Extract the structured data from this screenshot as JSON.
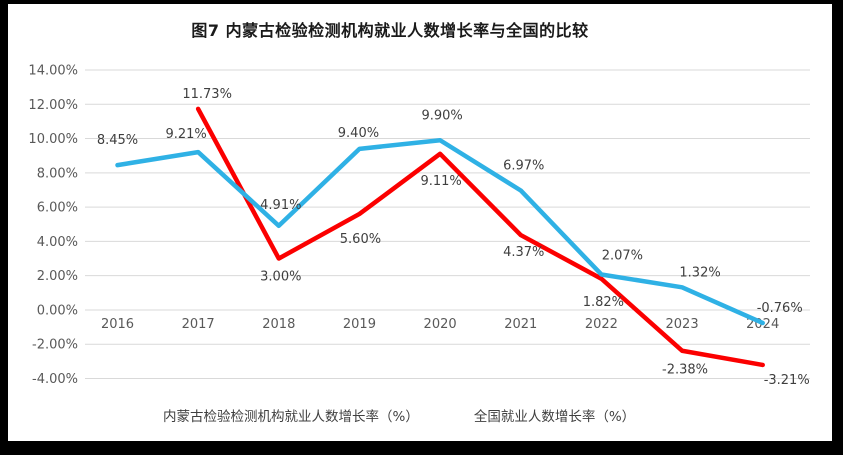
{
  "figure": {
    "title": "图7 内蒙古检验检测机构就业人数增长率与全国的比较"
  },
  "chart_data": {
    "type": "line",
    "title": "图7 内蒙古检验检测机构就业人数增长率与全国的比较",
    "categories": [
      "2016",
      "2017",
      "2018",
      "2019",
      "2020",
      "2021",
      "2022",
      "2023",
      "2024"
    ],
    "series": [
      {
        "name": "内蒙古检验检测机构就业人数增长率（%）",
        "color": "#fb0000",
        "values": [
          null,
          11.73,
          3.0,
          5.6,
          9.11,
          4.37,
          1.82,
          -2.38,
          -3.21
        ],
        "labels": [
          null,
          "11.73%",
          "3.00%",
          "5.60%",
          "9.11%",
          "4.37%",
          "1.82%",
          "-2.38%",
          "-3.21%"
        ],
        "label_offsets": [
          null,
          [
            9,
            -11
          ],
          [
            2,
            22
          ],
          [
            1,
            29
          ],
          [
            1,
            31
          ],
          [
            3,
            21
          ],
          [
            2,
            27
          ],
          [
            3,
            23
          ],
          [
            24,
            19
          ]
        ]
      },
      {
        "name": "全国就业人数增长率（%）",
        "color": "#2fb1e5",
        "values": [
          8.45,
          9.21,
          4.91,
          9.4,
          9.9,
          6.97,
          2.07,
          1.32,
          -0.76
        ],
        "labels": [
          "8.45%",
          "9.21%",
          "4.91%",
          "9.40%",
          "9.90%",
          "6.97%",
          "2.07%",
          "1.32%",
          "-0.76%"
        ],
        "label_offsets": [
          [
            0,
            -21
          ],
          [
            -12,
            -14
          ],
          [
            2,
            -17
          ],
          [
            -1,
            -12
          ],
          [
            2,
            -21
          ],
          [
            3,
            -21
          ],
          [
            21,
            -15
          ],
          [
            18,
            -11
          ],
          [
            17,
            -11
          ]
        ]
      }
    ],
    "y_ticks": [
      "14.00%",
      "12.00%",
      "10.00%",
      "8.00%",
      "6.00%",
      "4.00%",
      "2.00%",
      "0.00%",
      "-2.00%",
      "-4.00%"
    ],
    "ylim": [
      -4,
      14
    ],
    "xlabel": "",
    "ylabel": "",
    "grid": "horizontal",
    "gridline_color": "#d9d9d9",
    "legend_position": "bottom"
  }
}
